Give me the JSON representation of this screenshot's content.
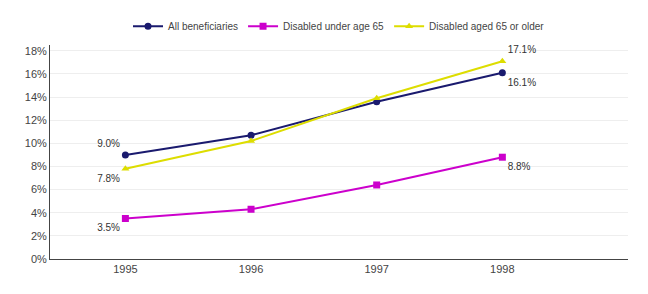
{
  "chart_data": {
    "type": "line",
    "x": [
      1995,
      1996,
      1997,
      1998
    ],
    "series": [
      {
        "name": "All beneficiaries",
        "color": "#1a1a6e",
        "marker": "circle",
        "values": [
          9.0,
          10.7,
          13.6,
          16.1
        ],
        "value_labels": [
          "9.0%",
          null,
          null,
          "16.1%"
        ]
      },
      {
        "name": "Disabled under age 65",
        "color": "#cc00cc",
        "marker": "square",
        "values": [
          3.5,
          4.3,
          6.4,
          8.8
        ],
        "value_labels": [
          "3.5%",
          null,
          null,
          "8.8%"
        ]
      },
      {
        "name": "Disabled aged 65 or older",
        "color": "#dddd00",
        "marker": "triangle-up",
        "values": [
          7.8,
          10.2,
          13.9,
          17.1
        ],
        "value_labels": [
          "7.8%",
          null,
          null,
          "17.1%"
        ]
      }
    ],
    "xlim": [
      1994.4,
      1999.0
    ],
    "xticks": [
      1995,
      1996,
      1997,
      1998
    ],
    "ylim": [
      0,
      18.5
    ],
    "yticks": [
      {
        "value": 0,
        "label": "0%"
      },
      {
        "value": 2,
        "label": "2%"
      },
      {
        "value": 4,
        "label": "4%"
      },
      {
        "value": 6,
        "label": "6%"
      },
      {
        "value": 8,
        "label": "8%"
      },
      {
        "value": 10,
        "label": "10%"
      },
      {
        "value": 12,
        "label": "12%"
      },
      {
        "value": 14,
        "label": "14%"
      },
      {
        "value": 16,
        "label": "16%"
      },
      {
        "value": 18,
        "label": "18%"
      }
    ],
    "grid": true,
    "legend": "top"
  }
}
